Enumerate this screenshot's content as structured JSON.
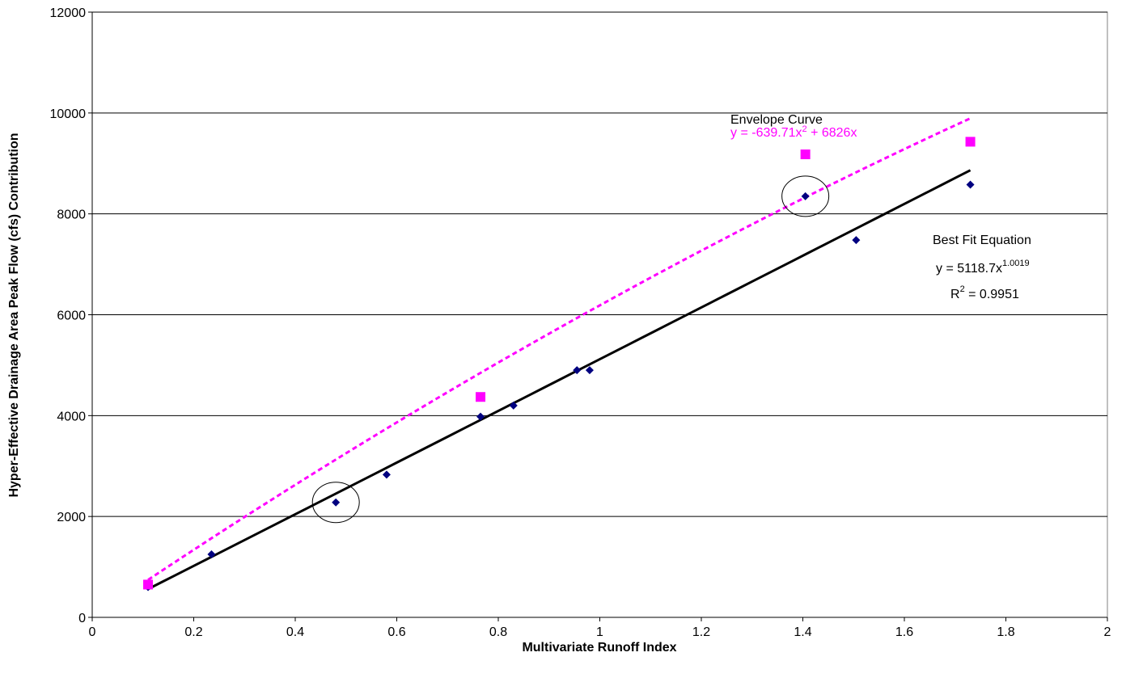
{
  "chart_data": {
    "type": "scatter",
    "title": "",
    "xlabel": "Multivariate Runoff Index",
    "ylabel": "Hyper-Effective Drainage Area Peak Flow (cfs) Contribution",
    "xlim": [
      0,
      2
    ],
    "ylim": [
      0,
      12000
    ],
    "x_ticks": [
      "0",
      "0.2",
      "0.4",
      "0.6",
      "0.8",
      "1",
      "1.2",
      "1.4",
      "1.6",
      "1.8",
      "2"
    ],
    "y_ticks": [
      "0",
      "2000",
      "4000",
      "6000",
      "8000",
      "10000",
      "12000"
    ],
    "grid": "horizontal",
    "series": [
      {
        "marker": "diamond",
        "color": "#000080",
        "x": [
          0.11,
          0.235,
          0.48,
          0.58,
          0.765,
          0.83,
          0.955,
          0.98,
          1.405,
          1.505,
          1.73
        ],
        "y": [
          600,
          1250,
          2280,
          2830,
          3980,
          4200,
          4900,
          4900,
          8350,
          7480,
          8580
        ]
      },
      {
        "marker": "square",
        "color": "#ff00ff",
        "x": [
          0.11,
          0.765,
          1.405,
          1.73
        ],
        "y": [
          650,
          4370,
          9180,
          9430
        ]
      }
    ],
    "trendlines": [
      {
        "label": "Envelope Curve",
        "equation_parts": {
          "a": "y = -639.71x",
          "sup": "2",
          "b": " + 6826x"
        },
        "style": "dotted",
        "color": "#ff00ff",
        "form": "polynomial",
        "coefficients": {
          "a2": -639.71,
          "a1": 6826,
          "a0": 0
        },
        "x_range": [
          0.11,
          1.73
        ]
      },
      {
        "label": "Best Fit Equation",
        "equation_parts": {
          "a": "y = 5118.7x",
          "sup": "1.0019"
        },
        "r2_parts": {
          "a": "R",
          "sup": "2",
          "b": " = 0.9951"
        },
        "style": "solid",
        "color": "#000000",
        "form": "power",
        "coefficients": {
          "a": 5118.7,
          "b": 1.0019
        },
        "x_range": [
          0.11,
          1.73
        ]
      }
    ],
    "highlight_circles": [
      {
        "x": 0.48,
        "y": 2280
      },
      {
        "x": 1.405,
        "y": 8350
      }
    ]
  }
}
